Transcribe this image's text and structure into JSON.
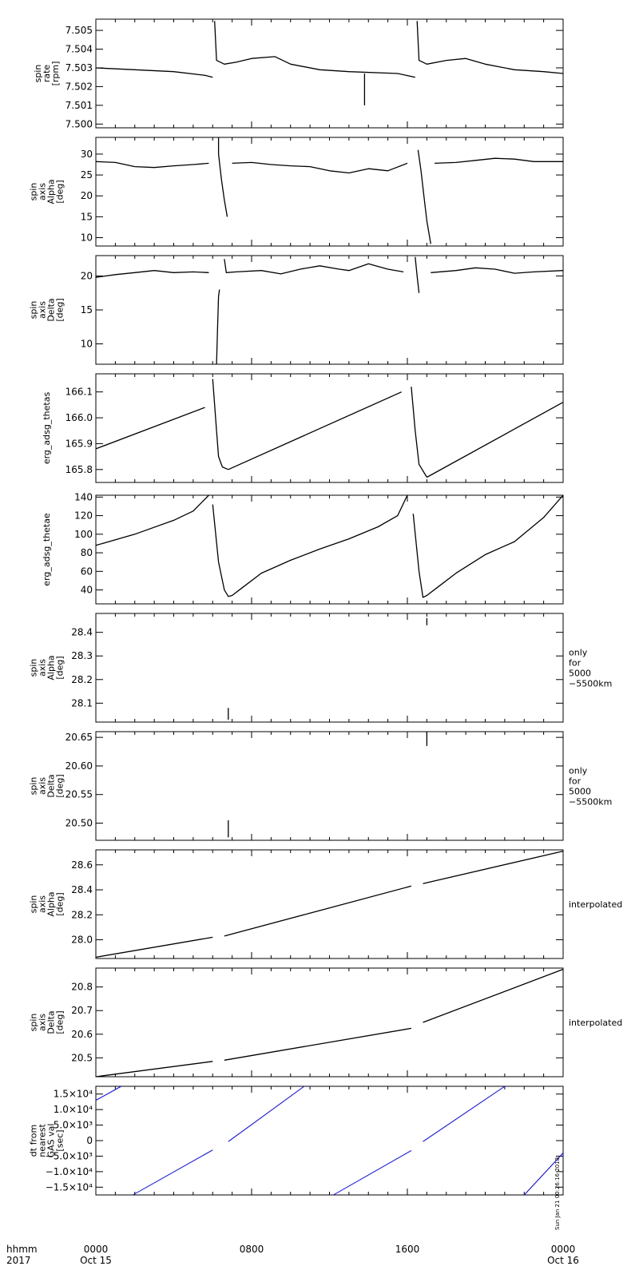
{
  "time_axis": {
    "ticks": [
      {
        "label": "0000",
        "sub": "Oct 15"
      },
      {
        "label": "0800",
        "sub": ""
      },
      {
        "label": "1600",
        "sub": ""
      },
      {
        "label": "0000",
        "sub": "Oct 16"
      }
    ],
    "corner_labels": [
      "hhmm",
      "2017"
    ],
    "range_hours": [
      0,
      24
    ]
  },
  "stamp": "Sun Jan 21 00:26:16 2018",
  "chart_data": [
    {
      "type": "scatter",
      "ylabel_lines": [
        "spin",
        "rate",
        "[rpm]"
      ],
      "ylim": [
        7.4998,
        7.5056
      ],
      "yticks": [
        7.5,
        7.501,
        7.502,
        7.503,
        7.504,
        7.505
      ],
      "ytick_labels": [
        "7.500",
        "7.501",
        "7.502",
        "7.503",
        "7.504",
        "7.505"
      ],
      "side_label_lines": [],
      "color": "#000000",
      "segments": [
        [
          [
            0,
            7.503
          ],
          [
            2,
            7.5029
          ],
          [
            4,
            7.5028
          ],
          [
            5.6,
            7.5026
          ],
          [
            6.0,
            7.5025
          ]
        ],
        [
          [
            6.1,
            7.5055
          ],
          [
            6.2,
            7.5034
          ],
          [
            6.6,
            7.5032
          ],
          [
            7.2,
            7.5033
          ],
          [
            8.0,
            7.5035
          ],
          [
            9.2,
            7.5036
          ],
          [
            10.0,
            7.5032
          ],
          [
            11.5,
            7.5029
          ],
          [
            13.0,
            7.5028
          ],
          [
            15.5,
            7.5027
          ],
          [
            16.4,
            7.5025
          ]
        ],
        [
          [
            16.5,
            7.5055
          ],
          [
            16.6,
            7.5034
          ],
          [
            17.0,
            7.5032
          ],
          [
            18.0,
            7.5034
          ],
          [
            19.0,
            7.5035
          ],
          [
            20.0,
            7.5032
          ],
          [
            21.5,
            7.5029
          ],
          [
            23.0,
            7.5028
          ],
          [
            24.0,
            7.5027
          ]
        ],
        [
          [
            13.8,
            7.5027
          ],
          [
            13.8,
            7.501
          ]
        ]
      ]
    },
    {
      "type": "scatter",
      "ylabel_lines": [
        "spin",
        "axis",
        "Alpha",
        "[deg]"
      ],
      "ylim": [
        8,
        34
      ],
      "yticks": [
        10,
        15,
        20,
        25,
        30
      ],
      "ytick_labels": [
        "10",
        "15",
        "20",
        "25",
        "30"
      ],
      "side_label_lines": [],
      "color": "#000000",
      "segments": [
        [
          [
            0,
            28.2
          ],
          [
            1,
            28.0
          ],
          [
            2,
            27.0
          ],
          [
            3,
            26.8
          ],
          [
            4,
            27.2
          ],
          [
            5,
            27.5
          ],
          [
            5.8,
            27.8
          ]
        ],
        [
          [
            6.3,
            34
          ],
          [
            6.3,
            30
          ],
          [
            6.45,
            24
          ],
          [
            6.6,
            19
          ],
          [
            6.75,
            15
          ]
        ],
        [
          [
            7.0,
            27.8
          ],
          [
            8.0,
            28.0
          ],
          [
            9.0,
            27.5
          ],
          [
            10.0,
            27.2
          ],
          [
            11.0,
            27.0
          ],
          [
            12.0,
            26.0
          ],
          [
            13.0,
            25.5
          ],
          [
            14.0,
            26.5
          ],
          [
            15.0,
            26.0
          ],
          [
            16.0,
            27.8
          ]
        ],
        [
          [
            16.55,
            31
          ],
          [
            16.7,
            26
          ],
          [
            16.85,
            20
          ],
          [
            17.0,
            14
          ],
          [
            17.2,
            8.5
          ]
        ],
        [
          [
            17.4,
            27.8
          ],
          [
            18.5,
            28.0
          ],
          [
            19.5,
            28.5
          ],
          [
            20.5,
            29.0
          ],
          [
            21.5,
            28.8
          ],
          [
            22.5,
            28.2
          ],
          [
            24.0,
            28.2
          ]
        ]
      ]
    },
    {
      "type": "scatter",
      "ylabel_lines": [
        "spin",
        "axis",
        "Delta",
        "[deg]"
      ],
      "ylim": [
        7,
        23
      ],
      "yticks": [
        10,
        15,
        20
      ],
      "ytick_labels": [
        "10",
        "15",
        "20"
      ],
      "side_label_lines": [],
      "color": "#000000",
      "segments": [
        [
          [
            0,
            19.8
          ],
          [
            1,
            20.2
          ],
          [
            2,
            20.5
          ],
          [
            3,
            20.8
          ],
          [
            4,
            20.5
          ],
          [
            5,
            20.6
          ],
          [
            5.8,
            20.5
          ]
        ],
        [
          [
            6.2,
            7
          ],
          [
            6.25,
            12
          ],
          [
            6.3,
            17
          ],
          [
            6.35,
            18
          ]
        ],
        [
          [
            6.6,
            22.5
          ],
          [
            6.7,
            20.5
          ],
          [
            7.2,
            20.6
          ],
          [
            8.5,
            20.8
          ],
          [
            9.5,
            20.3
          ],
          [
            10.5,
            21.0
          ],
          [
            11.5,
            21.5
          ],
          [
            12.5,
            21.0
          ],
          [
            13.0,
            20.8
          ],
          [
            14.0,
            21.8
          ],
          [
            15.0,
            21.0
          ],
          [
            15.8,
            20.6
          ]
        ],
        [
          [
            16.4,
            22.8
          ],
          [
            16.5,
            20.0
          ],
          [
            16.6,
            17.5
          ]
        ],
        [
          [
            17.2,
            20.5
          ],
          [
            18.5,
            20.8
          ],
          [
            19.5,
            21.2
          ],
          [
            20.5,
            21.0
          ],
          [
            21.5,
            20.4
          ],
          [
            22.5,
            20.6
          ],
          [
            24.0,
            20.8
          ]
        ]
      ]
    },
    {
      "type": "scatter",
      "ylabel_lines": [
        "erg_adsg_thetas"
      ],
      "ylim": [
        165.75,
        166.17
      ],
      "yticks": [
        165.8,
        165.9,
        166.0,
        166.1
      ],
      "ytick_labels": [
        "165.8",
        "165.9",
        "166.0",
        "166.1"
      ],
      "side_label_lines": [],
      "color": "#000000",
      "segments": [
        [
          [
            0,
            165.88
          ],
          [
            5.6,
            166.04
          ]
        ],
        [
          [
            6.0,
            166.15
          ],
          [
            6.2,
            165.95
          ],
          [
            6.3,
            165.85
          ],
          [
            6.5,
            165.81
          ],
          [
            6.8,
            165.8
          ]
        ],
        [
          [
            6.8,
            165.8
          ],
          [
            15.7,
            166.1
          ]
        ],
        [
          [
            16.2,
            166.12
          ],
          [
            16.4,
            165.95
          ],
          [
            16.6,
            165.82
          ],
          [
            17.0,
            165.77
          ]
        ],
        [
          [
            17.0,
            165.77
          ],
          [
            24.0,
            166.06
          ]
        ]
      ]
    },
    {
      "type": "line",
      "ylabel_lines": [
        "erg_adsg_thetae"
      ],
      "ylim": [
        25,
        142
      ],
      "yticks": [
        40,
        60,
        80,
        100,
        120,
        140
      ],
      "ytick_labels": [
        "40",
        "60",
        "80",
        "100",
        "120",
        "140"
      ],
      "side_label_lines": [],
      "color": "#000000",
      "segments": [
        [
          [
            0,
            88
          ],
          [
            2,
            100
          ],
          [
            4,
            115
          ],
          [
            5.0,
            125
          ],
          [
            5.8,
            142
          ]
        ],
        [
          [
            6.0,
            132
          ],
          [
            6.3,
            70
          ],
          [
            6.6,
            40
          ],
          [
            6.8,
            33
          ],
          [
            7.0,
            34
          ],
          [
            7.5,
            42
          ],
          [
            8.5,
            58
          ],
          [
            10.0,
            72
          ],
          [
            11.5,
            84
          ],
          [
            13.0,
            95
          ],
          [
            14.5,
            108
          ],
          [
            15.5,
            120
          ],
          [
            16.0,
            142
          ]
        ],
        [
          [
            16.3,
            122
          ],
          [
            16.6,
            60
          ],
          [
            16.8,
            32
          ],
          [
            17.0,
            34
          ],
          [
            17.5,
            42
          ],
          [
            18.5,
            58
          ],
          [
            20.0,
            78
          ],
          [
            21.5,
            92
          ],
          [
            23.0,
            118
          ],
          [
            24.0,
            142
          ]
        ]
      ]
    },
    {
      "type": "scatter",
      "ylabel_lines": [
        "spin",
        "axis",
        "Alpha",
        "[deg]"
      ],
      "ylim": [
        28.02,
        28.48
      ],
      "yticks": [
        28.1,
        28.2,
        28.3,
        28.4
      ],
      "ytick_labels": [
        "28.1",
        "28.2",
        "28.3",
        "28.4"
      ],
      "side_label_lines": [
        "only",
        "for",
        "5000",
        "−5500km"
      ],
      "color": "#000000",
      "segments": [
        [
          [
            6.8,
            28.08
          ],
          [
            6.8,
            28.03
          ]
        ],
        [
          [
            17.0,
            28.46
          ],
          [
            17.0,
            28.43
          ]
        ]
      ]
    },
    {
      "type": "scatter",
      "ylabel_lines": [
        "spin",
        "axis",
        "Delta",
        "[deg]"
      ],
      "ylim": [
        20.47,
        20.66
      ],
      "yticks": [
        20.5,
        20.55,
        20.6,
        20.65
      ],
      "ytick_labels": [
        "20.50",
        "20.55",
        "20.60",
        "20.65"
      ],
      "side_label_lines": [
        "only",
        "for",
        "5000",
        "−5500km"
      ],
      "color": "#000000",
      "segments": [
        [
          [
            6.8,
            20.505
          ],
          [
            6.8,
            20.475
          ]
        ],
        [
          [
            17.0,
            20.66
          ],
          [
            17.0,
            20.635
          ]
        ]
      ]
    },
    {
      "type": "line",
      "ylabel_lines": [
        "spin",
        "axis",
        "Alpha",
        "[deg]"
      ],
      "ylim": [
        27.85,
        28.72
      ],
      "yticks": [
        28.0,
        28.2,
        28.4,
        28.6
      ],
      "ytick_labels": [
        "28.0",
        "28.2",
        "28.4",
        "28.6"
      ],
      "side_label_lines": [
        "interpolated"
      ],
      "color": "#000000",
      "segments": [
        [
          [
            0,
            27.86
          ],
          [
            6.0,
            28.02
          ]
        ],
        [
          [
            6.6,
            28.03
          ],
          [
            16.2,
            28.43
          ]
        ],
        [
          [
            16.8,
            28.45
          ],
          [
            24.0,
            28.71
          ]
        ]
      ]
    },
    {
      "type": "line",
      "ylabel_lines": [
        "spin",
        "axis",
        "Delta",
        "[deg]"
      ],
      "ylim": [
        20.42,
        20.88
      ],
      "yticks": [
        20.5,
        20.6,
        20.7,
        20.8
      ],
      "ytick_labels": [
        "20.5",
        "20.6",
        "20.7",
        "20.8"
      ],
      "side_label_lines": [
        "interpolated"
      ],
      "color": "#000000",
      "segments": [
        [
          [
            0,
            20.42
          ],
          [
            6.0,
            20.485
          ]
        ],
        [
          [
            6.6,
            20.49
          ],
          [
            16.2,
            20.625
          ]
        ],
        [
          [
            16.8,
            20.65
          ],
          [
            24.0,
            20.875
          ]
        ]
      ]
    },
    {
      "type": "line",
      "ylabel_lines": [
        "dt from",
        "nearest",
        "GAS val",
        "[sec]"
      ],
      "ylim": [
        -17500,
        17500
      ],
      "yticks": [
        -15000,
        -10000,
        -5000,
        0,
        5000,
        10000,
        15000
      ],
      "ytick_labels": [
        "−1.5×10⁴",
        "−1.0×10⁴",
        "−5.0×10³",
        "0",
        "5.0×10³",
        "1.0×10⁴",
        "1.5×10⁴"
      ],
      "side_label_lines": [],
      "color": "#0000ff",
      "segments": [
        [
          [
            0,
            13000
          ],
          [
            1.3,
            17500
          ]
        ],
        [
          [
            1.9,
            -17500
          ],
          [
            6.0,
            -3000
          ]
        ],
        [
          [
            6.8,
            -300
          ],
          [
            10.7,
            17500
          ]
        ],
        [
          [
            12.2,
            -17500
          ],
          [
            16.2,
            -3200
          ]
        ],
        [
          [
            16.8,
            -300
          ],
          [
            21.0,
            17500
          ]
        ],
        [
          [
            22.0,
            -17500
          ],
          [
            24.0,
            -4000
          ]
        ]
      ]
    }
  ]
}
